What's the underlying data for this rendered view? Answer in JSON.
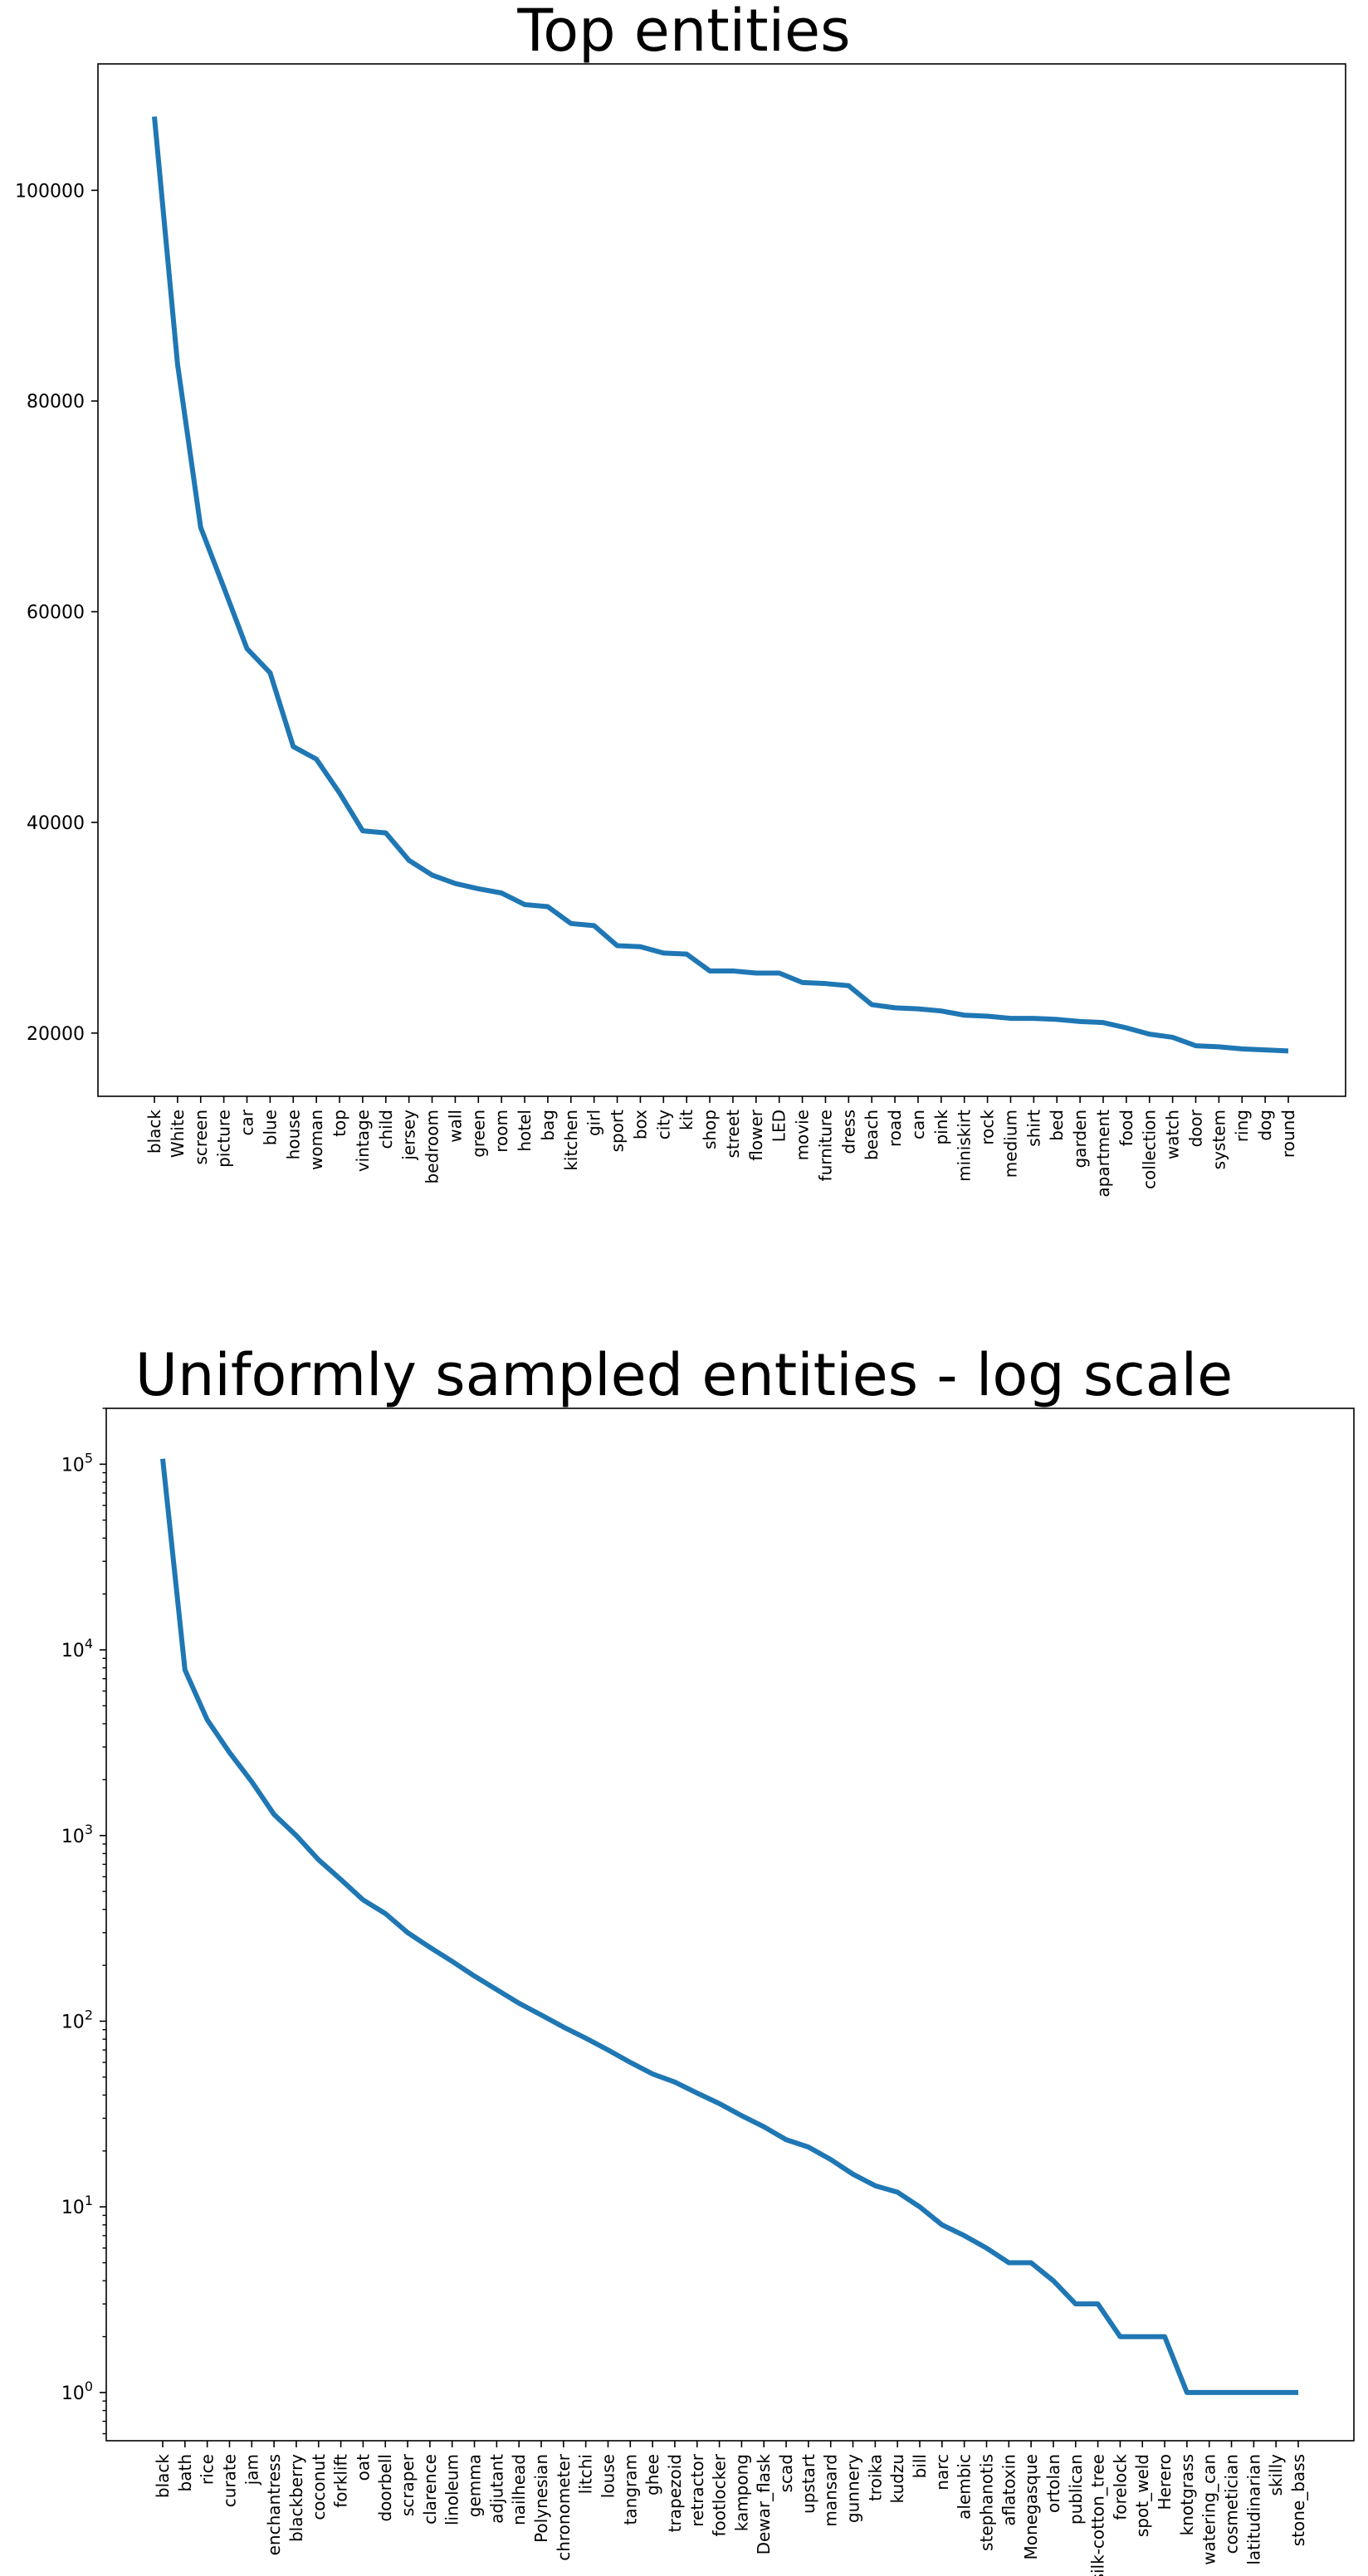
{
  "chart_data": [
    {
      "type": "line",
      "title": "Top entities",
      "xlabel": "",
      "ylabel": "",
      "color": "#1f77b4",
      "grid": false,
      "ylim": [
        14000,
        112000
      ],
      "yticks": [
        20000,
        40000,
        60000,
        80000,
        100000
      ],
      "ytick_labels": [
        "20000",
        "40000",
        "60000",
        "80000",
        "100000"
      ],
      "categories": [
        "black",
        "White",
        "screen",
        "picture",
        "car",
        "blue",
        "house",
        "woman",
        "top",
        "vintage",
        "child",
        "jersey",
        "bedroom",
        "wall",
        "green",
        "room",
        "hotel",
        "bag",
        "kitchen",
        "girl",
        "sport",
        "box",
        "city",
        "kit",
        "shop",
        "street",
        "flower",
        "LED",
        "movie",
        "furniture",
        "dress",
        "beach",
        "road",
        "can",
        "pink",
        "miniskirt",
        "rock",
        "medium",
        "shirt",
        "bed",
        "garden",
        "apartment",
        "food",
        "collection",
        "watch",
        "door",
        "system",
        "ring",
        "dog",
        "round"
      ],
      "values": [
        107000,
        83500,
        68000,
        62300,
        56500,
        54200,
        47200,
        46000,
        42800,
        39200,
        39000,
        36400,
        35000,
        34200,
        33700,
        33300,
        32200,
        32000,
        30400,
        30200,
        28300,
        28200,
        27600,
        27500,
        25900,
        25900,
        25700,
        25700,
        24800,
        24700,
        24500,
        22700,
        22400,
        22300,
        22100,
        21700,
        21600,
        21400,
        21400,
        21300,
        21100,
        21000,
        20500,
        19900,
        19600,
        18800,
        18700,
        18500,
        18400,
        18300
      ]
    },
    {
      "type": "line",
      "title": "Uniformly sampled entities - log scale",
      "xlabel": "",
      "ylabel": "",
      "color": "#1f77b4",
      "grid": false,
      "yscale": "log",
      "ylim": [
        0.55,
        200000
      ],
      "yticks": [
        1,
        10,
        100,
        1000,
        10000,
        100000
      ],
      "ytick_labels": [
        "10^0",
        "10^1",
        "10^2",
        "10^3",
        "10^4",
        "10^5"
      ],
      "categories": [
        "black",
        "bath",
        "rice",
        "curate",
        "jam",
        "enchantress",
        "blackberry",
        "coconut",
        "forklift",
        "oat",
        "doorbell",
        "scraper",
        "clarence",
        "linoleum",
        "gemma",
        "adjutant",
        "nailhead",
        "Polynesian",
        "chronometer",
        "litchi",
        "louse",
        "tangram",
        "ghee",
        "trapezoid",
        "retractor",
        "footlocker",
        "kampong",
        "Dewar_flask",
        "scad",
        "upstart",
        "mansard",
        "gunnery",
        "troika",
        "kudzu",
        "bill",
        "narc",
        "alembic",
        "stephanotis",
        "aflatoxin",
        "Monegasque",
        "ortolan",
        "publican",
        "silk-cotton_tree",
        "forelock",
        "spot_weld",
        "Herero",
        "knotgrass",
        "watering_can",
        "cosmetician",
        "latitudinarian",
        "skilly",
        "stone_bass"
      ],
      "values": [
        107000,
        7800,
        4200,
        2800,
        1950,
        1300,
        1000,
        740,
        580,
        450,
        380,
        300,
        250,
        210,
        175,
        148,
        125,
        108,
        93,
        81,
        70,
        60,
        52,
        47,
        41,
        36,
        31,
        27,
        23,
        21,
        18,
        15,
        13,
        12,
        10,
        8,
        7,
        6,
        5,
        5,
        4,
        3,
        3,
        2,
        2,
        2,
        1,
        1,
        1,
        1,
        1,
        1
      ]
    }
  ]
}
